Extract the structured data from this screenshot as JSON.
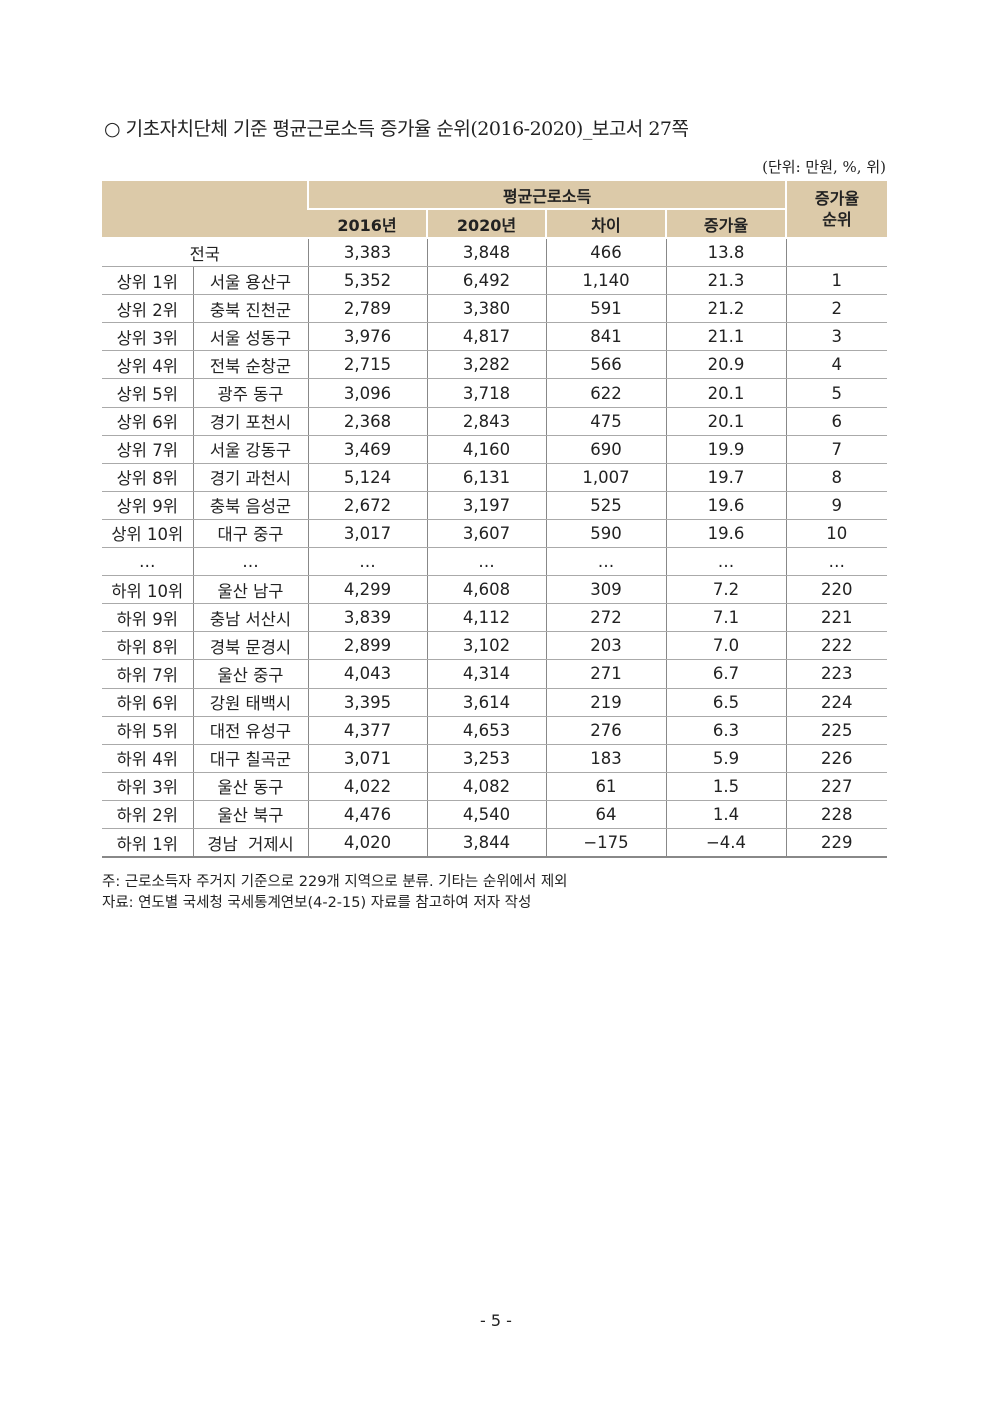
{
  "title": "○ 기초자치단체 기준 평균근로소득 증가율 순위(2016-2020)_보고서 27쪽",
  "unit": "(단위: 만원, %, 위)",
  "table": {
    "group_header": "평균근로소득",
    "rank_header": "증가율 순위",
    "columns": [
      "2016년",
      "2020년",
      "차이",
      "증가율"
    ],
    "rows": [
      [
        "전국",
        "",
        "3,383",
        "3,848",
        "466",
        "13.8",
        ""
      ],
      [
        "상위 1위",
        "서울 용산구",
        "5,352",
        "6,492",
        "1,140",
        "21.3",
        "1"
      ],
      [
        "상위 2위",
        "충북 진천군",
        "2,789",
        "3,380",
        "591",
        "21.2",
        "2"
      ],
      [
        "상위 3위",
        "서울 성동구",
        "3,976",
        "4,817",
        "841",
        "21.1",
        "3"
      ],
      [
        "상위 4위",
        "전북 순창군",
        "2,715",
        "3,282",
        "566",
        "20.9",
        "4"
      ],
      [
        "상위 5위",
        "광주 동구",
        "3,096",
        "3,718",
        "622",
        "20.1",
        "5"
      ],
      [
        "상위 6위",
        "경기 포천시",
        "2,368",
        "2,843",
        "475",
        "20.1",
        "6"
      ],
      [
        "상위 7위",
        "서울 강동구",
        "3,469",
        "4,160",
        "690",
        "19.9",
        "7"
      ],
      [
        "상위 8위",
        "경기 과천시",
        "5,124",
        "6,131",
        "1,007",
        "19.7",
        "8"
      ],
      [
        "상위 9위",
        "충북 음성군",
        "2,672",
        "3,197",
        "525",
        "19.6",
        "9"
      ],
      [
        "상위 10위",
        "대구 중구",
        "3,017",
        "3,607",
        "590",
        "19.6",
        "10"
      ],
      [
        "…",
        "…",
        "…",
        "…",
        "…",
        "…",
        "…"
      ],
      [
        "하위 10위",
        "울산 남구",
        "4,299",
        "4,608",
        "309",
        "7.2",
        "220"
      ],
      [
        "하위 9위",
        "충남 서산시",
        "3,839",
        "4,112",
        "272",
        "7.1",
        "221"
      ],
      [
        "하위 8위",
        "경북 문경시",
        "2,899",
        "3,102",
        "203",
        "7.0",
        "222"
      ],
      [
        "하위 7위",
        "울산 중구",
        "4,043",
        "4,314",
        "271",
        "6.7",
        "223"
      ],
      [
        "하위 6위",
        "강원 태백시",
        "3,395",
        "3,614",
        "219",
        "6.5",
        "224"
      ],
      [
        "하위 5위",
        "대전 유성구",
        "4,377",
        "4,653",
        "276",
        "6.3",
        "225"
      ],
      [
        "하위 4위",
        "대구 칠곡군",
        "3,071",
        "3,253",
        "183",
        "5.9",
        "226"
      ],
      [
        "하위 3위",
        "울산 동구",
        "4,022",
        "4,082",
        "61",
        "1.5",
        "227"
      ],
      [
        "하위 2위",
        "울산 북구",
        "4,476",
        "4,540",
        "64",
        "1.4",
        "228"
      ],
      [
        "하위 1위",
        "경남  거제시",
        "4,020",
        "3,844",
        "−175",
        "−4.4",
        "229"
      ]
    ]
  },
  "notes": [
    "주: 근로소득자 주거지 기준으로 229개 지역으로 분류. 기타는 순위에서 제외",
    "자료: 연도별 국세청 국세통계연보(4-2-15) 자료를 참고하여 저자 작성"
  ],
  "page_number": "- 5 -",
  "colors": {
    "header_bg": "#dccaa9"
  }
}
